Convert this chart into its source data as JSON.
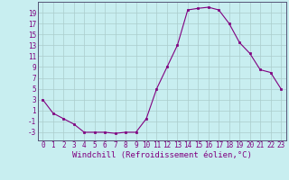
{
  "x": [
    0,
    1,
    2,
    3,
    4,
    5,
    6,
    7,
    8,
    9,
    10,
    11,
    12,
    13,
    14,
    15,
    16,
    17,
    18,
    19,
    20,
    21,
    22,
    23
  ],
  "y": [
    3,
    0.5,
    -0.5,
    -1.5,
    -3,
    -3,
    -3,
    -3.2,
    -3,
    -3,
    -0.5,
    5,
    9,
    13,
    19.5,
    19.8,
    20,
    19.5,
    17,
    13.5,
    11.5,
    8.5,
    8,
    5
  ],
  "line_color": "#800080",
  "marker_color": "#800080",
  "bg_color": "#c8eef0",
  "grid_color": "#aacccc",
  "xlabel": "Windchill (Refroidissement éolien,°C)",
  "yticks": [
    -3,
    -1,
    1,
    3,
    5,
    7,
    9,
    11,
    13,
    15,
    17,
    19
  ],
  "ylim": [
    -4.5,
    21
  ],
  "xlim": [
    -0.5,
    23.5
  ],
  "tick_label_color": "#800080",
  "tick_fontsize": 5.5,
  "xlabel_fontsize": 6.5,
  "spine_color": "#555577"
}
